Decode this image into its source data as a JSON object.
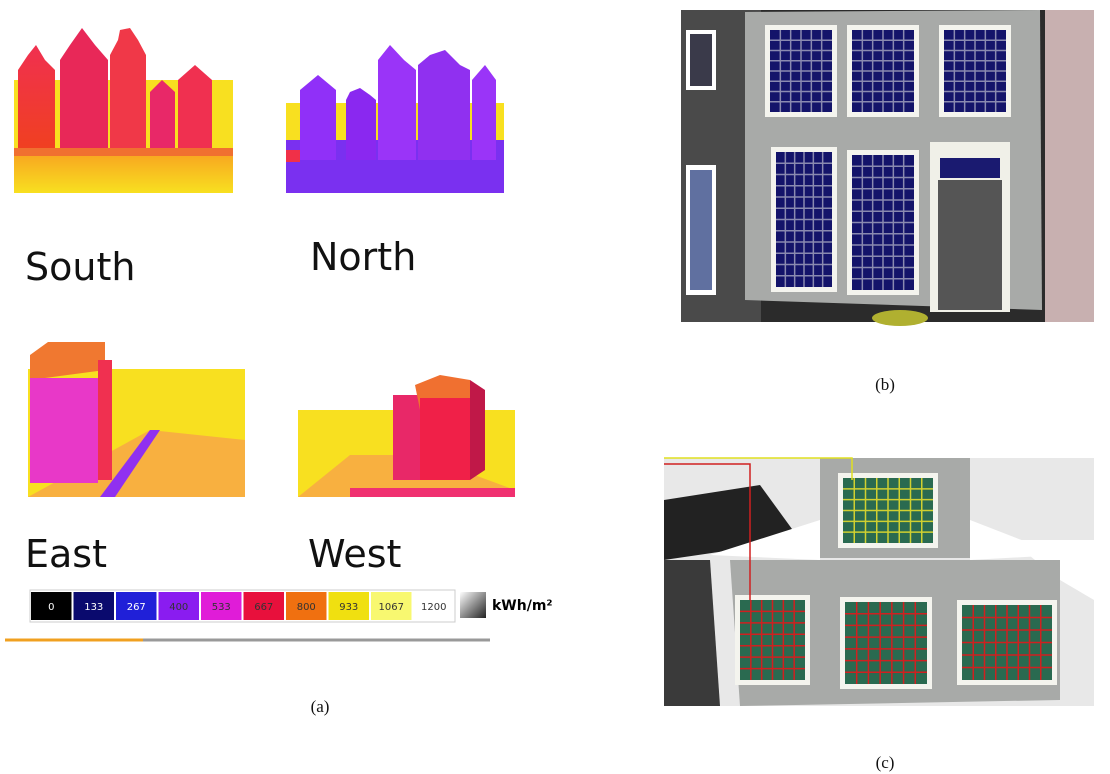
{
  "panel_a": {
    "views": [
      "South",
      "North",
      "East",
      "West"
    ],
    "legend": {
      "entries": [
        {
          "label": 0,
          "color": "#000000"
        },
        {
          "label": 133,
          "color": "#0a0a6e"
        },
        {
          "label": 267,
          "color": "#2020d8"
        },
        {
          "label": 400,
          "color": "#8a1cf0"
        },
        {
          "label": 533,
          "color": "#e01cd8"
        },
        {
          "label": 667,
          "color": "#e8103c"
        },
        {
          "label": 800,
          "color": "#f07010"
        },
        {
          "label": 933,
          "color": "#f0e010"
        },
        {
          "label": 1067,
          "color": "#f8f870"
        },
        {
          "label": 1200,
          "color": "#ffffff"
        }
      ],
      "unit": "kWh/m²"
    },
    "label": "(a)"
  },
  "panel_b": {
    "label": "(b)"
  },
  "panel_c": {
    "label": "(c)"
  }
}
